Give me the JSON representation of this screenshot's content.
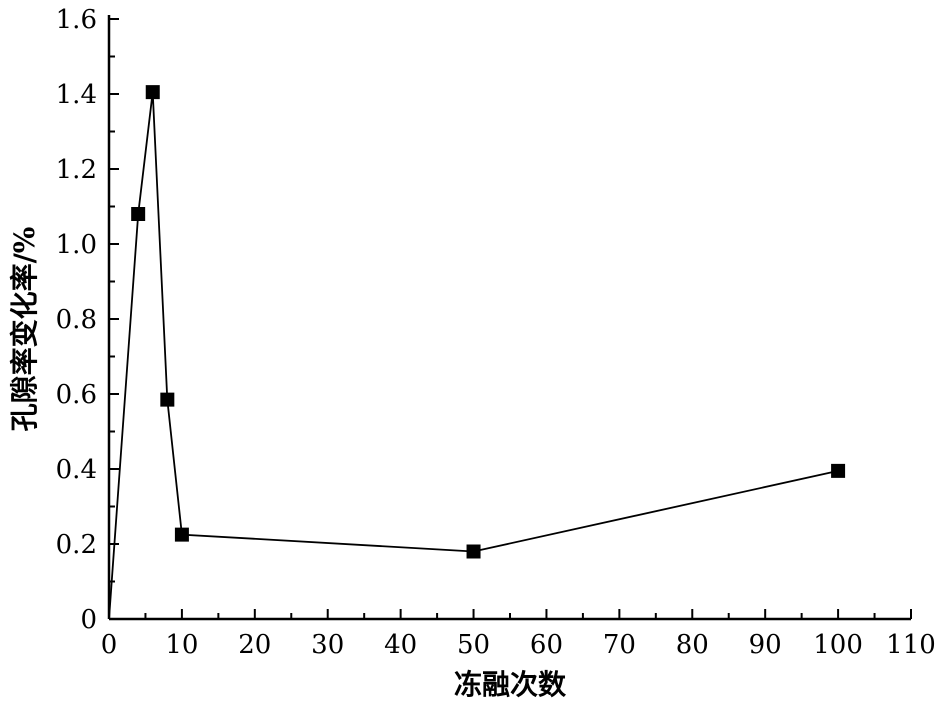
{
  "chart_data": {
    "type": "line",
    "title": "",
    "xlabel": "冻融次数",
    "ylabel": "孔隙率变化率/%",
    "xlim": [
      0,
      110
    ],
    "ylim": [
      0,
      1.6
    ],
    "xticks": [
      "0",
      "10",
      "20",
      "30",
      "40",
      "50",
      "60",
      "70",
      "80",
      "90",
      "100",
      "110"
    ],
    "yticks": [
      "0",
      "0.2",
      "0.4",
      "0.6",
      "0.8",
      "1.0",
      "1.2",
      "1.4",
      "1.6"
    ],
    "grid": false,
    "legend": "none",
    "marker": "square",
    "color": "#000000",
    "series": [
      {
        "x": [
          0,
          4,
          6,
          8,
          10,
          50,
          100
        ],
        "y": [
          0,
          1.08,
          1.405,
          0.585,
          0.225,
          0.18,
          0.395
        ]
      }
    ]
  }
}
